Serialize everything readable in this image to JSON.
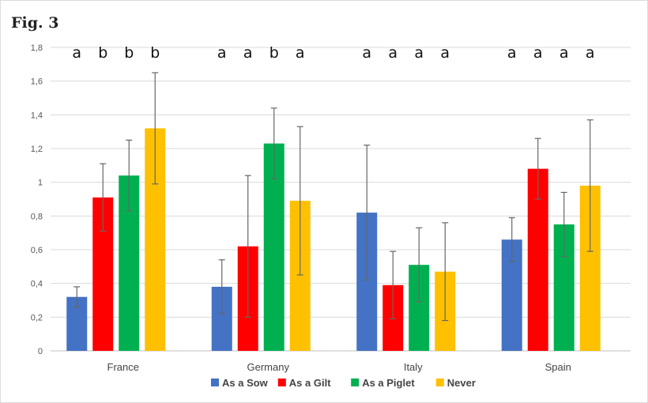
{
  "figure_label": "Fig. 3",
  "chart_data": {
    "type": "bar",
    "title": "",
    "xlabel": "",
    "ylabel": "",
    "ylim": [
      0,
      1.8
    ],
    "y_ticks": [
      "0",
      "0,2",
      "0,4",
      "0,6",
      "0,8",
      "1",
      "1,2",
      "1,4",
      "1,6",
      "1,8"
    ],
    "categories": [
      "France",
      "Germany",
      "Italy",
      "Spain"
    ],
    "series": [
      {
        "name": "As a Sow",
        "color": "#4472C4",
        "values": [
          0.32,
          0.38,
          0.82,
          0.66
        ],
        "error_high": [
          0.38,
          0.54,
          1.22,
          0.79
        ],
        "error_low": [
          0.26,
          0.22,
          0.42,
          0.53
        ]
      },
      {
        "name": "As a Gilt",
        "color": "#FF0000",
        "values": [
          0.91,
          0.62,
          0.39,
          1.08
        ],
        "error_high": [
          1.11,
          1.04,
          0.59,
          1.26
        ],
        "error_low": [
          0.71,
          0.2,
          0.19,
          0.9
        ]
      },
      {
        "name": "As a Piglet",
        "color": "#00B050",
        "values": [
          1.04,
          1.23,
          0.51,
          0.75
        ],
        "error_high": [
          1.25,
          1.44,
          0.73,
          0.94
        ],
        "error_low": [
          0.83,
          1.02,
          0.29,
          0.56
        ]
      },
      {
        "name": "Never",
        "color": "#FFC000",
        "values": [
          1.32,
          0.89,
          0.47,
          0.98
        ],
        "error_high": [
          1.65,
          1.33,
          0.76,
          1.37
        ],
        "error_low": [
          0.99,
          0.45,
          0.18,
          0.59
        ]
      }
    ],
    "significance_letters": [
      [
        "a",
        "b",
        "b",
        "b"
      ],
      [
        "a",
        "a",
        "b",
        "a"
      ],
      [
        "a",
        "a",
        "a",
        "a"
      ],
      [
        "a",
        "a",
        "a",
        "a"
      ]
    ],
    "grid": true,
    "legend_position": "bottom"
  }
}
